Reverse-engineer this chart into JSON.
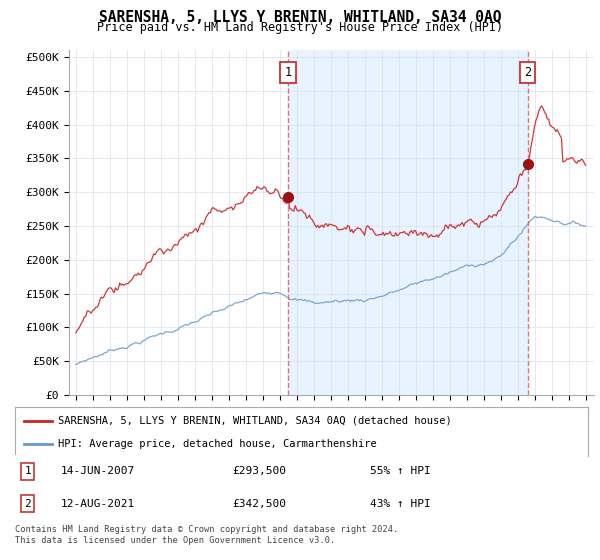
{
  "title": "SARENSHA, 5, LLYS Y BRENIN, WHITLAND, SA34 0AQ",
  "subtitle": "Price paid vs. HM Land Registry's House Price Index (HPI)",
  "yticks": [
    0,
    50000,
    100000,
    150000,
    200000,
    250000,
    300000,
    350000,
    400000,
    450000,
    500000
  ],
  "ytick_labels": [
    "£0",
    "£50K",
    "£100K",
    "£150K",
    "£200K",
    "£250K",
    "£300K",
    "£350K",
    "£400K",
    "£450K",
    "£500K"
  ],
  "red_line_color": "#cc2222",
  "blue_line_color": "#6699cc",
  "dashed_line_color": "#dd6666",
  "shade_color": "#ddeeff",
  "marker1_year": 2007.5,
  "marker2_year": 2021.6,
  "marker1_price": 293500,
  "marker2_price": 342500,
  "legend_red": "SARENSHA, 5, LLYS Y BRENIN, WHITLAND, SA34 0AQ (detached house)",
  "legend_blue": "HPI: Average price, detached house, Carmarthenshire",
  "table_row1_label": "1",
  "table_row1_date": "14-JUN-2007",
  "table_row1_price": "£293,500",
  "table_row1_hpi": "55% ↑ HPI",
  "table_row2_label": "2",
  "table_row2_date": "12-AUG-2021",
  "table_row2_price": "£342,500",
  "table_row2_hpi": "43% ↑ HPI",
  "footer": "Contains HM Land Registry data © Crown copyright and database right 2024.\nThis data is licensed under the Open Government Licence v3.0.",
  "background_color": "#ffffff",
  "grid_color": "#ddddee"
}
